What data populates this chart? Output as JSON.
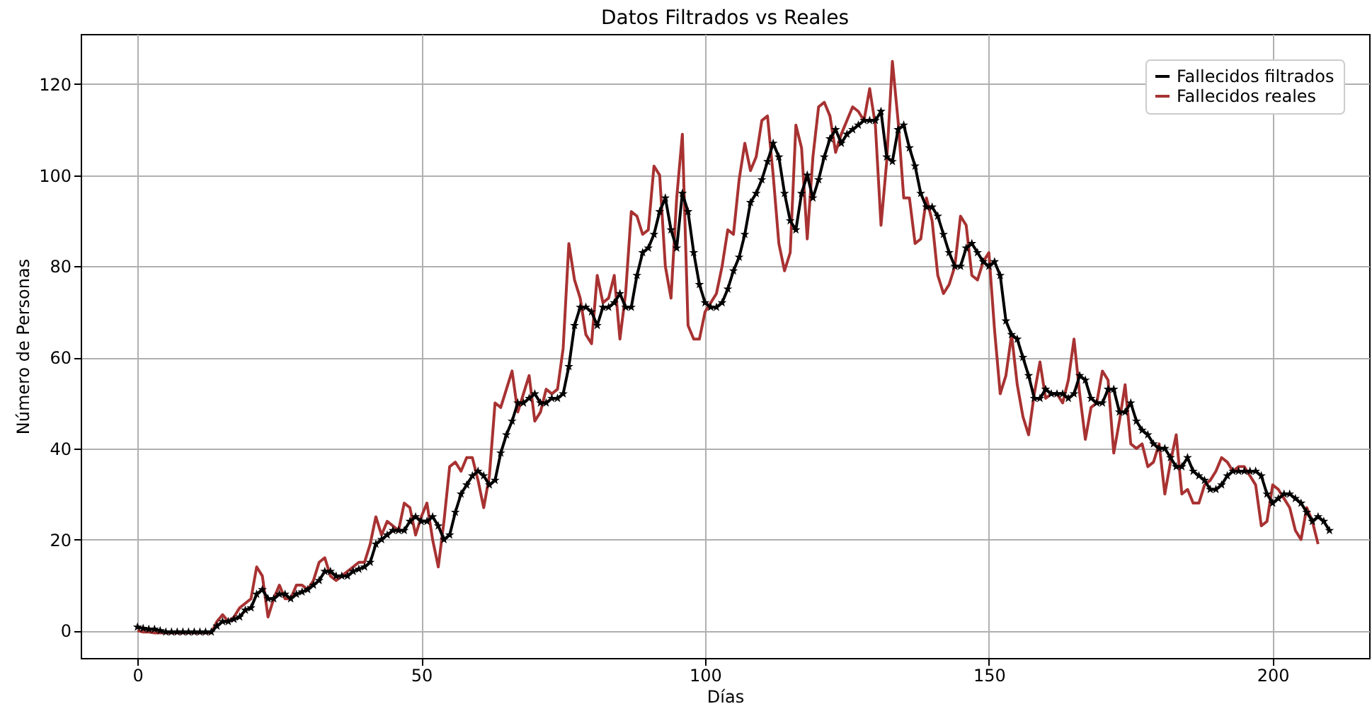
{
  "chart_data": {
    "type": "line",
    "title": "Datos Filtrados vs Reales",
    "xlabel": "Días",
    "ylabel": "Número de Personas",
    "x": [
      0,
      1,
      2,
      3,
      4,
      5,
      6,
      7,
      8,
      9,
      10,
      11,
      12,
      13,
      14,
      15,
      16,
      17,
      18,
      19,
      20,
      21,
      22,
      23,
      24,
      25,
      26,
      27,
      28,
      29,
      30,
      31,
      32,
      33,
      34,
      35,
      36,
      37,
      38,
      39,
      40,
      41,
      42,
      43,
      44,
      45,
      46,
      47,
      48,
      49,
      50,
      51,
      52,
      53,
      54,
      55,
      56,
      57,
      58,
      59,
      60,
      61,
      62,
      63,
      64,
      65,
      66,
      67,
      68,
      69,
      70,
      71,
      72,
      73,
      74,
      75,
      76,
      77,
      78,
      79,
      80,
      81,
      82,
      83,
      84,
      85,
      86,
      87,
      88,
      89,
      90,
      91,
      92,
      93,
      94,
      95,
      96,
      97,
      98,
      99,
      100,
      101,
      102,
      103,
      104,
      105,
      106,
      107,
      108,
      109,
      110,
      111,
      112,
      113,
      114,
      115,
      116,
      117,
      118,
      119,
      120,
      121,
      122,
      123,
      124,
      125,
      126,
      127,
      128,
      129,
      130,
      131,
      132,
      133,
      134,
      135,
      136,
      137,
      138,
      139,
      140,
      141,
      142,
      143,
      144,
      145,
      146,
      147,
      148,
      149,
      150,
      151,
      152,
      153,
      154,
      155,
      156,
      157,
      158,
      159,
      160,
      161,
      162,
      163,
      164,
      165,
      166,
      167,
      168,
      169,
      170,
      171,
      172,
      173,
      174,
      175,
      176,
      177,
      178,
      179,
      180,
      181,
      182,
      183,
      184,
      185,
      186,
      187,
      188,
      189,
      190,
      191,
      192,
      193,
      194,
      195,
      196,
      197,
      198,
      199,
      200,
      201,
      202,
      203,
      204,
      205,
      206,
      207,
      208,
      209,
      210
    ],
    "series": [
      {
        "name": "Fallecidos filtrados",
        "color": "#000000",
        "marker": "star",
        "values": [
          0.8,
          0.5,
          0.3,
          0.3,
          0,
          -0.3,
          -0.3,
          -0.3,
          -0.3,
          -0.3,
          -0.3,
          -0.3,
          -0.3,
          -0.3,
          1,
          2,
          2,
          2.5,
          3,
          4.5,
          5,
          8,
          9,
          7,
          7,
          8,
          8,
          7,
          8,
          8.5,
          9,
          10,
          11,
          13,
          13,
          12,
          12,
          12,
          13,
          13.5,
          14,
          15,
          19,
          20,
          21,
          22,
          22,
          22,
          24,
          25,
          24,
          24,
          25,
          23,
          20,
          21,
          26,
          30,
          32,
          34,
          35,
          34,
          32,
          33,
          39,
          43,
          46,
          50,
          50,
          51,
          52,
          50,
          50,
          51,
          51,
          52,
          58,
          67,
          71,
          71,
          70,
          67,
          71,
          71,
          72,
          74,
          71,
          71,
          78,
          83,
          84,
          87,
          92,
          95,
          88,
          84,
          96,
          92,
          83,
          76,
          72,
          71,
          71,
          72,
          75,
          79,
          82,
          87,
          94,
          96,
          99,
          103,
          107,
          104,
          96,
          90,
          88,
          96,
          100,
          95,
          99,
          104,
          108,
          110,
          107,
          109,
          110,
          111,
          112,
          112,
          112,
          114,
          104,
          103,
          110,
          111,
          106,
          102,
          96,
          93,
          93,
          91,
          87,
          83,
          80,
          80,
          84,
          85,
          83,
          81,
          80,
          81,
          78,
          68,
          65,
          64,
          60,
          56,
          51,
          51,
          53,
          52,
          52,
          52,
          51,
          52,
          56,
          55,
          51,
          50,
          50,
          53,
          53,
          48,
          48,
          50,
          46,
          44,
          43,
          41,
          40,
          40,
          38,
          36,
          36,
          38,
          35,
          34,
          33,
          31,
          31,
          32,
          34,
          35,
          35,
          35,
          35,
          35,
          34,
          30,
          28,
          29,
          30,
          30,
          29,
          28,
          26,
          24,
          25,
          24,
          22
        ]
      },
      {
        "name": "Fallecidos reales",
        "color": "#a83232",
        "marker": "none",
        "values": [
          0,
          -0.3,
          -0.3,
          -0.5,
          -0.5,
          -0.5,
          -0.5,
          -0.5,
          -0.5,
          -0.5,
          -0.5,
          -0.5,
          -0.5,
          -0.5,
          2,
          3.5,
          2,
          3,
          5,
          6,
          7,
          14,
          12,
          3,
          7,
          10,
          7,
          7,
          10,
          10,
          9,
          11,
          15,
          16,
          12,
          11,
          12,
          13,
          14,
          15,
          15,
          19,
          25,
          21,
          24,
          23,
          22,
          28,
          27,
          21,
          25,
          28,
          20,
          14,
          24,
          36,
          37,
          35,
          38,
          38,
          33,
          27,
          34,
          50,
          49,
          53,
          57,
          48,
          52,
          56,
          46,
          48,
          53,
          52,
          53,
          62,
          85,
          77,
          73,
          65,
          63,
          78,
          72,
          73,
          78,
          64,
          74,
          92,
          91,
          87,
          88,
          102,
          100,
          80,
          73,
          95,
          109,
          67,
          64,
          64,
          70,
          72,
          74,
          80,
          88,
          87,
          99,
          107,
          101,
          104,
          112,
          113,
          100,
          85,
          79,
          83,
          111,
          106,
          86,
          104,
          115,
          116,
          113,
          105,
          109,
          112,
          115,
          114,
          112,
          119,
          111,
          89,
          103,
          125,
          112,
          95,
          95,
          85,
          86,
          95,
          90,
          78,
          74,
          76,
          80,
          91,
          89,
          78,
          77,
          81,
          83,
          66,
          52,
          56,
          65,
          54,
          47,
          43,
          52,
          59,
          51,
          52,
          52,
          50,
          55,
          64,
          52,
          42,
          49,
          50,
          57,
          55,
          39,
          46,
          54,
          41,
          40,
          41,
          36,
          37,
          41,
          30,
          37,
          43,
          30,
          31,
          28,
          28,
          32,
          33,
          35,
          38,
          37,
          35,
          36,
          36,
          34,
          32,
          23,
          24,
          32,
          31,
          29,
          27,
          22,
          20,
          27,
          24,
          19,
          null,
          null
        ]
      }
    ],
    "xlim": [
      -10,
      217
    ],
    "xticks": [
      0,
      50,
      100,
      150,
      200
    ],
    "ylim": [
      -6,
      131
    ],
    "yticks": [
      0,
      20,
      40,
      60,
      80,
      100,
      120
    ],
    "grid": true,
    "legend": "top right"
  }
}
